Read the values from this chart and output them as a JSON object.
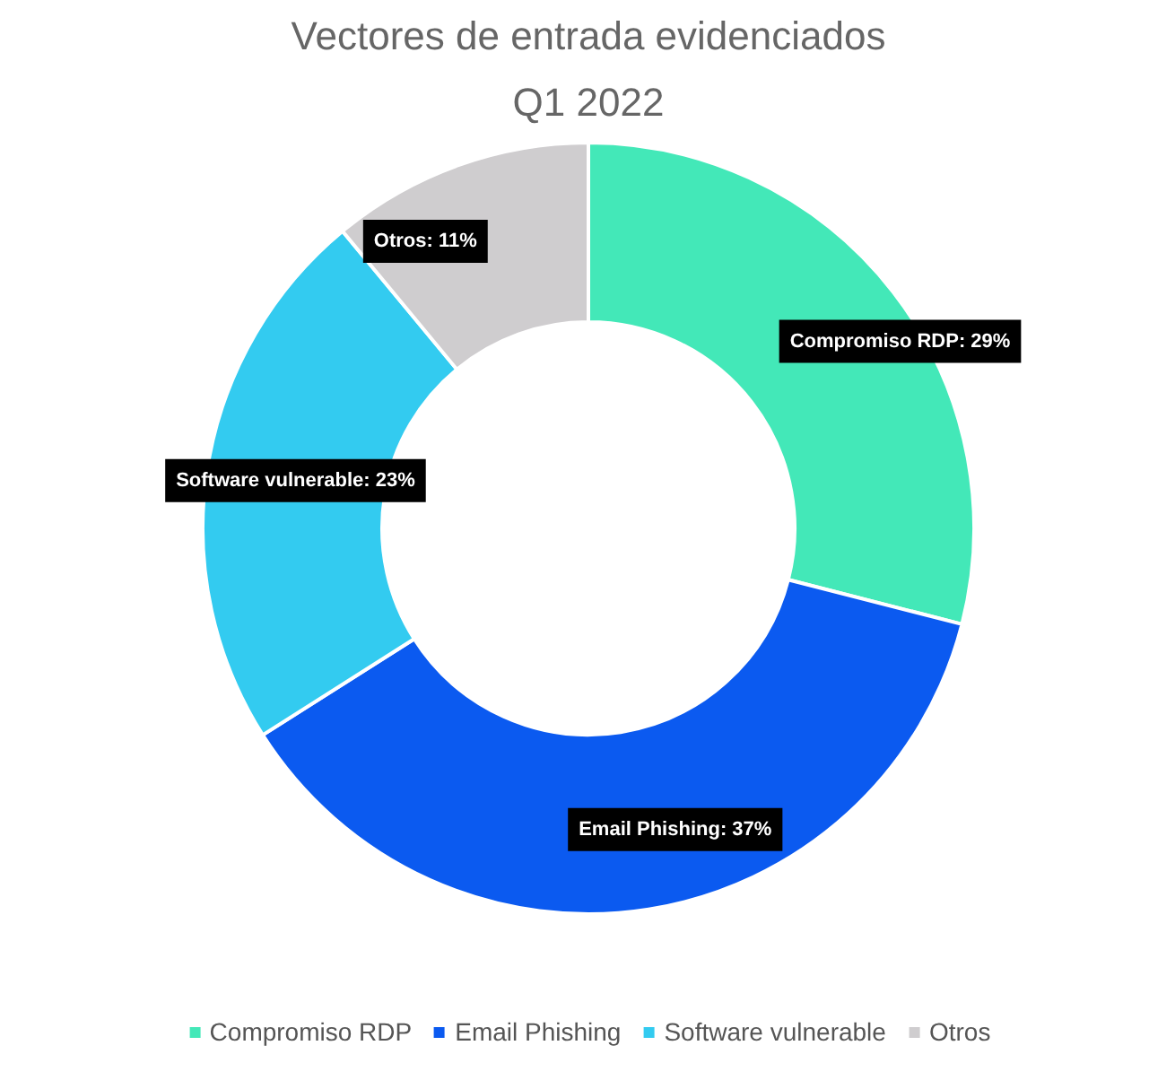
{
  "chart_data": {
    "type": "donut",
    "title": "Vectores de entrada evidenciados",
    "subtitle": "Q1 2022",
    "categories": [
      "Compromiso RDP",
      "Email Phishing",
      "Software vulnerable",
      "Otros"
    ],
    "values": [
      29,
      37,
      23,
      11
    ],
    "value_labels": [
      "Compromiso RDP: 29%",
      "Email Phishing: 37%",
      "Software vulnerable: 23%",
      "Otros: 11%"
    ],
    "colors": [
      "#43e8b8",
      "#0b5af0",
      "#33cbf0",
      "#cfcdcf"
    ],
    "legend": "bottom"
  }
}
